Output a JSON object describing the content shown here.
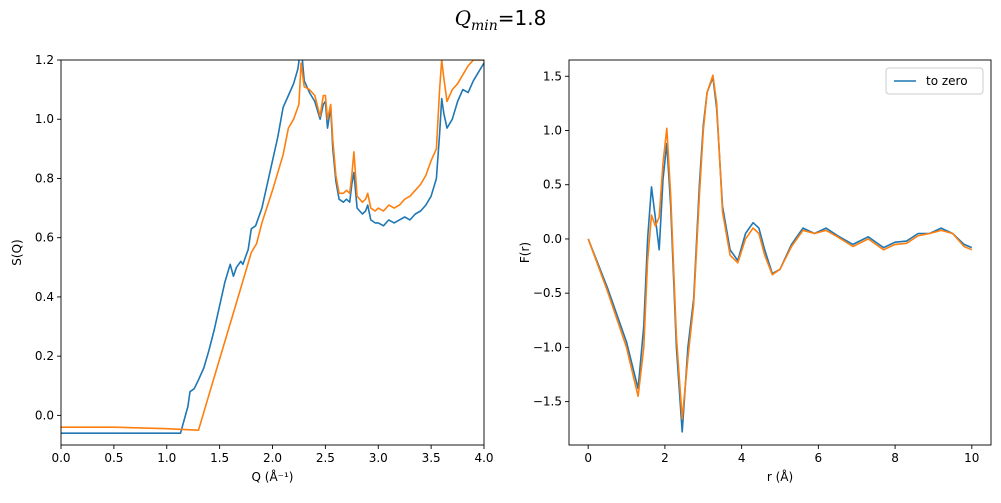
{
  "figure": {
    "title_symbol": "Q",
    "title_sub": "min",
    "title_value": "=1.8"
  },
  "chart_data": [
    {
      "type": "line",
      "xlabel": "Q (Å⁻¹)",
      "ylabel": "S(Q)",
      "xlim": [
        0.0,
        4.0
      ],
      "ylim": [
        -0.1,
        1.2
      ],
      "xticks": [
        "0.0",
        "0.5",
        "1.0",
        "1.5",
        "2.0",
        "2.5",
        "3.0",
        "3.5",
        "4.0"
      ],
      "yticks": [
        "0.0",
        "0.2",
        "0.4",
        "0.6",
        "0.8",
        "1.0",
        "1.2"
      ],
      "xtick_values": [
        0.0,
        0.5,
        1.0,
        1.5,
        2.0,
        2.5,
        3.0,
        3.5,
        4.0
      ],
      "ytick_values": [
        0.0,
        0.2,
        0.4,
        0.6,
        0.8,
        1.0,
        1.2
      ],
      "grid": false,
      "legend": null,
      "series": [
        {
          "color": "#1f77b4",
          "x": [
            0.0,
            1.13,
            1.2,
            1.22,
            1.26,
            1.3,
            1.35,
            1.4,
            1.45,
            1.5,
            1.55,
            1.6,
            1.63,
            1.66,
            1.7,
            1.72,
            1.74,
            1.77,
            1.8,
            1.84,
            1.9,
            1.95,
            2.0,
            2.05,
            2.1,
            2.15,
            2.2,
            2.24,
            2.27,
            2.3,
            2.35,
            2.4,
            2.45,
            2.48,
            2.5,
            2.52,
            2.55,
            2.57,
            2.6,
            2.63,
            2.67,
            2.7,
            2.73,
            2.75,
            2.77,
            2.8,
            2.85,
            2.88,
            2.9,
            2.93,
            2.97,
            3.0,
            3.05,
            3.1,
            3.15,
            3.2,
            3.25,
            3.3,
            3.35,
            3.4,
            3.45,
            3.5,
            3.55,
            3.58,
            3.6,
            3.62,
            3.65,
            3.7,
            3.75,
            3.8,
            3.85,
            3.9,
            3.95,
            4.0
          ],
          "y": [
            -0.06,
            -0.06,
            0.03,
            0.08,
            0.09,
            0.12,
            0.16,
            0.22,
            0.29,
            0.37,
            0.45,
            0.51,
            0.47,
            0.5,
            0.52,
            0.51,
            0.53,
            0.56,
            0.63,
            0.64,
            0.7,
            0.78,
            0.86,
            0.94,
            1.04,
            1.08,
            1.12,
            1.17,
            1.25,
            1.13,
            1.09,
            1.06,
            1.0,
            1.05,
            1.06,
            0.97,
            1.04,
            0.9,
            0.79,
            0.73,
            0.72,
            0.73,
            0.72,
            0.78,
            0.82,
            0.7,
            0.68,
            0.69,
            0.71,
            0.66,
            0.65,
            0.65,
            0.64,
            0.66,
            0.65,
            0.66,
            0.67,
            0.66,
            0.68,
            0.69,
            0.71,
            0.74,
            0.8,
            0.95,
            1.07,
            1.02,
            0.97,
            1.0,
            1.06,
            1.1,
            1.09,
            1.13,
            1.16,
            1.19
          ]
        },
        {
          "color": "#ff7f0e",
          "x": [
            0.0,
            0.5,
            1.0,
            1.3,
            1.4,
            1.5,
            1.6,
            1.7,
            1.8,
            1.85,
            1.9,
            2.0,
            2.1,
            2.15,
            2.2,
            2.25,
            2.27,
            2.3,
            2.35,
            2.4,
            2.45,
            2.48,
            2.5,
            2.52,
            2.55,
            2.57,
            2.6,
            2.63,
            2.67,
            2.7,
            2.73,
            2.75,
            2.77,
            2.8,
            2.85,
            2.88,
            2.9,
            2.93,
            2.97,
            3.0,
            3.05,
            3.1,
            3.15,
            3.2,
            3.25,
            3.3,
            3.35,
            3.4,
            3.45,
            3.5,
            3.55,
            3.58,
            3.6,
            3.62,
            3.65,
            3.7,
            3.75,
            3.8,
            3.85,
            3.9,
            3.95,
            4.0
          ],
          "y": [
            -0.04,
            -0.04,
            -0.045,
            -0.05,
            0.07,
            0.19,
            0.31,
            0.43,
            0.55,
            0.58,
            0.65,
            0.76,
            0.88,
            0.97,
            1.0,
            1.05,
            1.19,
            1.11,
            1.1,
            1.08,
            1.01,
            1.08,
            1.08,
            1.0,
            1.05,
            0.93,
            0.81,
            0.75,
            0.75,
            0.76,
            0.75,
            0.81,
            0.89,
            0.74,
            0.72,
            0.73,
            0.75,
            0.7,
            0.69,
            0.7,
            0.69,
            0.71,
            0.7,
            0.71,
            0.73,
            0.74,
            0.76,
            0.78,
            0.81,
            0.86,
            0.9,
            1.1,
            1.2,
            1.14,
            1.06,
            1.1,
            1.12,
            1.15,
            1.18,
            1.2,
            1.2,
            1.2
          ]
        }
      ]
    },
    {
      "type": "line",
      "xlabel": "r (Å)",
      "ylabel": "F(r)",
      "xlim": [
        -0.5,
        10.5
      ],
      "ylim": [
        -1.9,
        1.65
      ],
      "xticks": [
        "0",
        "2",
        "4",
        "6",
        "8",
        "10"
      ],
      "yticks": [
        "−1.5",
        "−1.0",
        "−0.5",
        "0.0",
        "0.5",
        "1.0",
        "1.5"
      ],
      "xtick_values": [
        0,
        2,
        4,
        6,
        8,
        10
      ],
      "ytick_values": [
        -1.5,
        -1.0,
        -0.5,
        0.0,
        0.5,
        1.0,
        1.5
      ],
      "grid": false,
      "legend": {
        "position": "top-right",
        "entries": [
          {
            "label": "to zero",
            "color": "#1f77b4"
          }
        ]
      },
      "series": [
        {
          "name": "to zero",
          "color": "#1f77b4",
          "x": [
            0.0,
            0.5,
            1.0,
            1.3,
            1.45,
            1.55,
            1.65,
            1.75,
            1.85,
            1.95,
            2.05,
            2.15,
            2.3,
            2.45,
            2.6,
            2.75,
            2.9,
            3.0,
            3.1,
            3.25,
            3.35,
            3.5,
            3.7,
            3.9,
            4.1,
            4.3,
            4.45,
            4.6,
            4.8,
            5.0,
            5.3,
            5.6,
            5.9,
            6.2,
            6.5,
            6.9,
            7.3,
            7.7,
            8.0,
            8.3,
            8.6,
            8.9,
            9.2,
            9.5,
            9.8,
            10.0
          ],
          "y": [
            0.0,
            -0.45,
            -0.95,
            -1.38,
            -0.8,
            0.0,
            0.48,
            0.2,
            -0.1,
            0.55,
            0.88,
            0.3,
            -1.0,
            -1.78,
            -1.0,
            -0.55,
            0.5,
            1.05,
            1.35,
            1.49,
            1.2,
            0.3,
            -0.1,
            -0.2,
            0.05,
            0.15,
            0.1,
            -0.1,
            -0.32,
            -0.28,
            -0.05,
            0.1,
            0.05,
            0.1,
            0.03,
            -0.05,
            0.02,
            -0.08,
            -0.03,
            -0.02,
            0.05,
            0.05,
            0.1,
            0.05,
            -0.05,
            -0.08
          ]
        },
        {
          "name": "",
          "color": "#ff7f0e",
          "x": [
            0.0,
            0.5,
            1.0,
            1.3,
            1.45,
            1.55,
            1.65,
            1.75,
            1.85,
            1.95,
            2.05,
            2.15,
            2.3,
            2.45,
            2.6,
            2.75,
            2.9,
            3.0,
            3.1,
            3.25,
            3.35,
            3.5,
            3.7,
            3.9,
            4.1,
            4.3,
            4.45,
            4.6,
            4.8,
            5.0,
            5.3,
            5.6,
            5.9,
            6.2,
            6.5,
            6.9,
            7.3,
            7.7,
            8.0,
            8.3,
            8.6,
            8.9,
            9.2,
            9.5,
            9.8,
            10.0
          ],
          "y": [
            0.0,
            -0.48,
            -1.0,
            -1.45,
            -1.0,
            -0.2,
            0.22,
            0.12,
            0.2,
            0.7,
            1.02,
            0.4,
            -0.9,
            -1.66,
            -1.1,
            -0.6,
            0.4,
            1.0,
            1.35,
            1.51,
            1.25,
            0.25,
            -0.15,
            -0.22,
            0.0,
            0.1,
            0.05,
            -0.15,
            -0.33,
            -0.28,
            -0.07,
            0.08,
            0.05,
            0.08,
            0.02,
            -0.07,
            0.0,
            -0.1,
            -0.05,
            -0.04,
            0.03,
            0.05,
            0.08,
            0.05,
            -0.07,
            -0.1
          ]
        }
      ]
    }
  ]
}
